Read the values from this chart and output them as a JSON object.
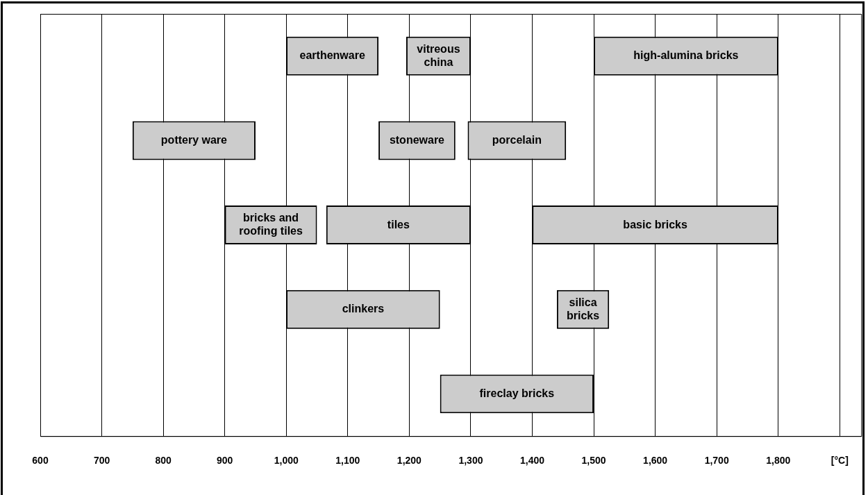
{
  "chart_data": {
    "type": "bar",
    "orientation": "horizontal",
    "categories": [
      null,
      null,
      null,
      null,
      null
    ],
    "xlim": [
      600,
      1935
    ],
    "xticks": [
      600,
      700,
      800,
      900,
      {
        "value": 1000,
        "label": "1,000"
      },
      {
        "value": 1100,
        "label": "1,100"
      },
      {
        "value": 1200,
        "label": "1,200"
      },
      {
        "value": 1300,
        "label": "1,300"
      },
      {
        "value": 1400,
        "label": "1,400"
      },
      {
        "value": 1500,
        "label": "1,500"
      },
      {
        "value": 1600,
        "label": "1,600"
      },
      {
        "value": 1700,
        "label": "1,700"
      },
      {
        "value": 1800,
        "label": "1,800"
      },
      {
        "value": 1900,
        "label": "[°C]"
      }
    ],
    "grid": "x",
    "legend": false,
    "tick_labels": "x",
    "series": [
      {
        "name": "earthenware",
        "color": "#cccccc",
        "base": [
          1000,
          null,
          null,
          null,
          null
        ],
        "values": [
          150,
          null,
          null,
          null,
          null
        ]
      },
      {
        "name": "vitreous china",
        "color": "#cccccc",
        "base": [
          1195,
          null,
          null,
          null,
          null
        ],
        "values": [
          105,
          null,
          null,
          null,
          null
        ]
      },
      {
        "name": "high-alumina bricks",
        "color": "#cccccc",
        "base": [
          1500,
          null,
          null,
          null,
          null
        ],
        "values": [
          300,
          null,
          null,
          null,
          null
        ]
      },
      {
        "name": "pottery ware",
        "color": "#cccccc",
        "base": [
          null,
          750,
          null,
          null,
          null
        ],
        "values": [
          null,
          200,
          null,
          null,
          null
        ]
      },
      {
        "name": "stoneware",
        "color": "#cccccc",
        "base": [
          null,
          1150,
          null,
          null,
          null
        ],
        "values": [
          null,
          125,
          null,
          null,
          null
        ]
      },
      {
        "name": "porcelain",
        "color": "#cccccc",
        "base": [
          null,
          1295,
          null,
          null,
          null
        ],
        "values": [
          null,
          160,
          null,
          null,
          null
        ]
      },
      {
        "name": "bricks and roofing tiles",
        "color": "#cccccc",
        "base": [
          null,
          null,
          900,
          null,
          null
        ],
        "values": [
          null,
          null,
          150,
          null,
          null
        ]
      },
      {
        "name": "tiles",
        "color": "#cccccc",
        "base": [
          null,
          null,
          1065,
          null,
          null
        ],
        "values": [
          null,
          null,
          235,
          null,
          null
        ]
      },
      {
        "name": "basic bricks",
        "color": "#cccccc",
        "base": [
          null,
          null,
          1400,
          null,
          null
        ],
        "values": [
          null,
          null,
          400,
          null,
          null
        ]
      },
      {
        "name": "clinkers",
        "color": "#cccccc",
        "base": [
          null,
          null,
          null,
          1000,
          null
        ],
        "values": [
          null,
          null,
          null,
          250,
          null
        ]
      },
      {
        "name": "silica bricks",
        "color": "#cccccc",
        "base": [
          null,
          null,
          null,
          1440,
          null
        ],
        "values": [
          null,
          null,
          null,
          85,
          null
        ]
      },
      {
        "name": "fireclay bricks",
        "color": "#cccccc",
        "base": [
          null,
          null,
          null,
          null,
          1250
        ],
        "values": [
          null,
          null,
          null,
          null,
          250
        ]
      }
    ]
  }
}
